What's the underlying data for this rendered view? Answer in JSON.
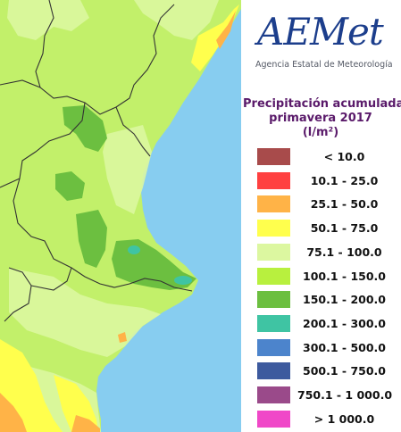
{
  "logo": {
    "name": "AEMet",
    "agency": "Agencia Estatal de Meteorología"
  },
  "legend": {
    "title_lines": [
      "Precipitación acumulada",
      "primavera 2017",
      "(l/m²)"
    ],
    "items": [
      {
        "label": "< 10.0",
        "color": "#a84b4b"
      },
      {
        "label": "10.1 - 25.0",
        "color": "#ff4040"
      },
      {
        "label": "25.1 - 50.0",
        "color": "#ffb347"
      },
      {
        "label": "50.1 - 75.0",
        "color": "#ffff4d"
      },
      {
        "label": "75.1 - 100.0",
        "color": "#dcf7a0"
      },
      {
        "label": "100.1 - 150.0",
        "color": "#b8f03e"
      },
      {
        "label": "150.1 - 200.0",
        "color": "#6cbf40"
      },
      {
        "label": "200.1 - 300.0",
        "color": "#3fc4a3"
      },
      {
        "label": "300.1 - 500.0",
        "color": "#4c84cc"
      },
      {
        "label": "500.1 - 750.0",
        "color": "#3d5a9e"
      },
      {
        "label": "750.1 - 1 000.0",
        "color": "#9a4a8a"
      },
      {
        "label": "> 1 000.0",
        "color": "#f048c8"
      }
    ]
  },
  "map": {
    "sea_color": "#87cdf0",
    "land_base_color": "#c2f06a",
    "border_color": "#333333"
  }
}
